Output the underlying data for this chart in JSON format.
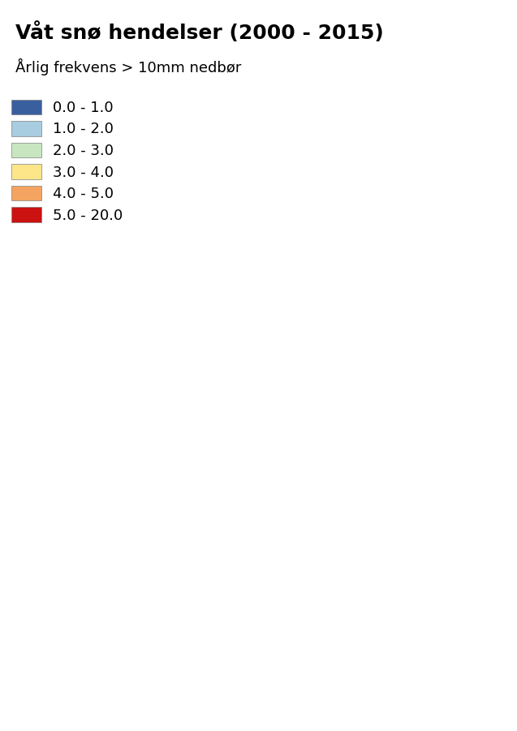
{
  "title": "Våt snø hendelser (2000 - 2015)",
  "subtitle": "Årlig frekvens > 10mm nedbør",
  "legend_labels": [
    "0.0 - 1.0",
    "1.0 - 2.0",
    "2.0 - 3.0",
    "3.0 - 4.0",
    "4.0 - 5.0",
    "5.0 - 20.0"
  ],
  "legend_colors": [
    "#3a5f9f",
    "#a8cce0",
    "#c8e6c0",
    "#fde68a",
    "#f4a460",
    "#cc1111"
  ],
  "title_fontsize": 18,
  "subtitle_fontsize": 13,
  "legend_fontsize": 13,
  "figsize": [
    6.37,
    9.01
  ],
  "dpi": 100,
  "background_color": "#ffffff",
  "norway_extent": [
    4.0,
    31.5,
    57.5,
    71.5
  ],
  "colormap_bounds": [
    0.0,
    1.0,
    2.0,
    3.0,
    4.0,
    5.0,
    20.0
  ]
}
